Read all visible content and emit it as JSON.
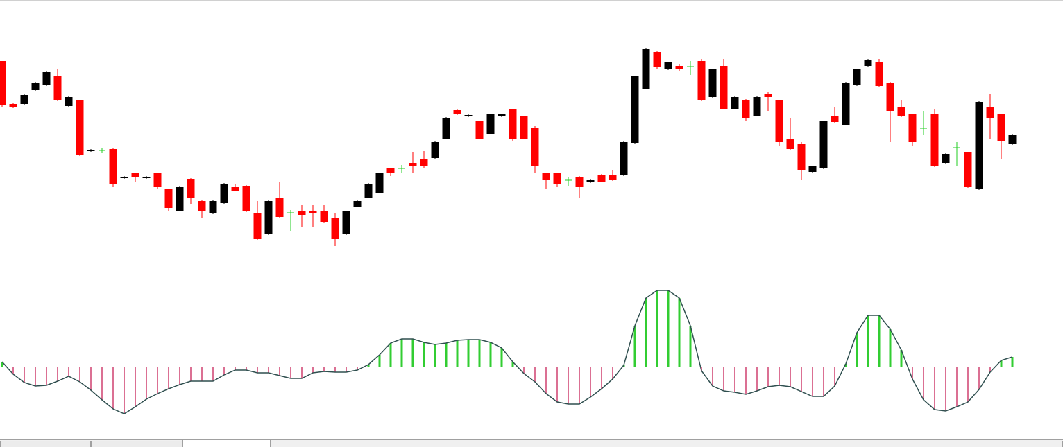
{
  "chart_data": [
    {
      "type": "candlestick",
      "open": [
        312,
        250,
        250,
        270,
        277,
        290,
        247,
        255,
        182,
        183,
        185,
        143,
        150,
        143,
        150,
        127,
        96,
        142,
        110,
        92,
        107,
        130,
        132,
        92,
        62,
        115,
        93,
        95,
        95,
        95,
        85,
        62,
        102,
        115,
        122,
        157,
        157,
        165,
        170,
        172,
        200,
        241,
        232,
        225,
        207,
        232,
        242,
        232,
        216,
        150,
        150,
        140,
        145,
        137,
        148,
        147,
        147,
        193,
        272,
        325,
        300,
        305,
        304,
        312,
        260,
        305,
        243,
        255,
        233,
        265,
        255,
        200,
        192,
        152,
        157,
        232,
        220,
        277,
        305,
        310,
        280,
        245,
        235,
        215,
        235,
        165,
        187,
        180,
        127,
        245,
        235,
        192
      ],
      "high": [
        312,
        251,
        264,
        281,
        297,
        300,
        261,
        256,
        185,
        187,
        186,
        146,
        151,
        146,
        151,
        128,
        131,
        143,
        111,
        111,
        136,
        135,
        133,
        110,
        111,
        137,
        97,
        104,
        104,
        104,
        92,
        96,
        111,
        136,
        151,
        157,
        162,
        180,
        182,
        196,
        231,
        242,
        235,
        226,
        236,
        236,
        243,
        233,
        218,
        151,
        151,
        145,
        146,
        141,
        149,
        155,
        196,
        291,
        331,
        326,
        311,
        308,
        312,
        315,
        301,
        315,
        261,
        257,
        261,
        267,
        256,
        230,
        195,
        161,
        226,
        245,
        281,
        301,
        315,
        315,
        281,
        255,
        236,
        240,
        242,
        179,
        195,
        181,
        254,
        265,
        236,
        206
      ],
      "low": [
        245,
        244,
        249,
        269,
        276,
        254,
        246,
        175,
        181,
        179,
        130,
        142,
        138,
        142,
        128,
        95,
        95,
        105,
        85,
        91,
        106,
        124,
        94,
        54,
        61,
        85,
        67,
        72,
        72,
        78,
        45,
        61,
        101,
        114,
        121,
        146,
        151,
        150,
        158,
        171,
        199,
        234,
        231,
        199,
        206,
        231,
        197,
        199,
        150,
        127,
        130,
        132,
        115,
        136,
        137,
        139,
        146,
        192,
        271,
        300,
        299,
        298,
        292,
        254,
        259,
        242,
        242,
        225,
        232,
        240,
        190,
        184,
        140,
        151,
        156,
        223,
        219,
        276,
        304,
        275,
        195,
        231,
        190,
        205,
        159,
        164,
        160,
        129,
        126,
        200,
        170,
        191
      ],
      "close": [
        248,
        246,
        263,
        280,
        296,
        255,
        260,
        176,
        184,
        183,
        135,
        145,
        144,
        145,
        130,
        100,
        130,
        115,
        95,
        110,
        135,
        125,
        95,
        55,
        110,
        87,
        93,
        90,
        92,
        80,
        55,
        95,
        110,
        135,
        150,
        150,
        157,
        160,
        160,
        195,
        230,
        235,
        234,
        200,
        235,
        235,
        200,
        200,
        160,
        140,
        135,
        140,
        130,
        140,
        138,
        140,
        195,
        290,
        330,
        304,
        310,
        300,
        304,
        255,
        300,
        243,
        260,
        230,
        260,
        260,
        195,
        185,
        155,
        160,
        225,
        224,
        280,
        300,
        314,
        276,
        240,
        232,
        195,
        215,
        160,
        178,
        187,
        130,
        253,
        230,
        197,
        205
      ],
      "up_color": "#000000",
      "down_color": "#ff0000",
      "doji_color": "#22cc22",
      "ylim": [
        20,
        400
      ]
    },
    {
      "type": "histogram",
      "values": [
        8,
        -10,
        -22,
        -27,
        -26,
        -20,
        -13,
        -21,
        -33,
        -47,
        -60,
        -67,
        -57,
        -46,
        -38,
        -31,
        -25,
        -20,
        -20,
        -20,
        -11,
        -4,
        -4,
        -8,
        -8,
        -12,
        -16,
        -16,
        -8,
        -6,
        -7,
        -7,
        -4,
        4,
        18,
        35,
        41,
        41,
        36,
        33,
        35,
        39,
        40,
        40,
        36,
        28,
        8,
        -9,
        -21,
        -38,
        -50,
        -53,
        -53,
        -43,
        -31,
        -17,
        3,
        60,
        100,
        111,
        111,
        100,
        60,
        -5,
        -27,
        -34,
        -36,
        -39,
        -34,
        -28,
        -26,
        -28,
        -35,
        -42,
        -42,
        -27,
        5,
        50,
        75,
        75,
        55,
        25,
        -17,
        -47,
        -61,
        -63,
        -57,
        -50,
        -32,
        -7,
        10,
        15
      ],
      "positive_color": "#32cd32",
      "negative_color": "#db7093",
      "line_color": "#2f4f4f",
      "ylim": [
        -100,
        130
      ]
    }
  ]
}
